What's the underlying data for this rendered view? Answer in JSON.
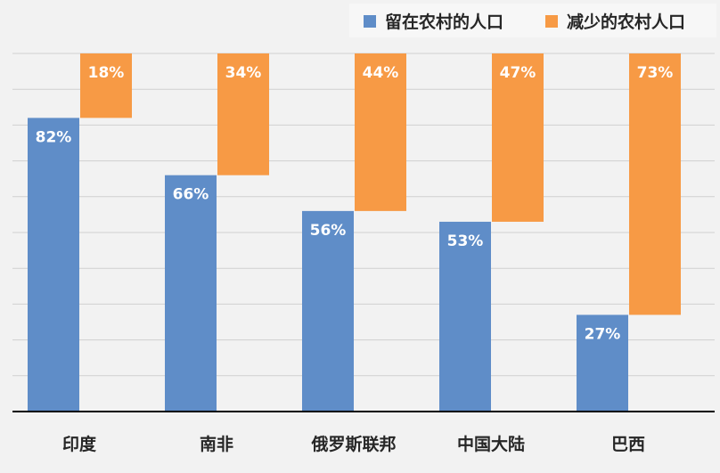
{
  "chart_data": {
    "type": "bar",
    "stacked": true,
    "categories": [
      "印度",
      "南非",
      "俄罗斯联邦",
      "中国大陆",
      "巴西"
    ],
    "series": [
      {
        "name": "留在农村的人口",
        "color": "#5f8dc8",
        "values": [
          82,
          66,
          56,
          53,
          27
        ],
        "labels": [
          "82%",
          "66%",
          "56%",
          "53%",
          "27%"
        ]
      },
      {
        "name": "减少的农村人口",
        "color": "#f79a45",
        "values": [
          18,
          34,
          44,
          47,
          73
        ],
        "labels": [
          "18%",
          "34%",
          "44%",
          "47%",
          "73%"
        ]
      }
    ],
    "ylim": [
      0,
      100
    ],
    "grid": true,
    "legend_position": "top-right",
    "title": "",
    "xlabel": "",
    "ylabel": ""
  }
}
